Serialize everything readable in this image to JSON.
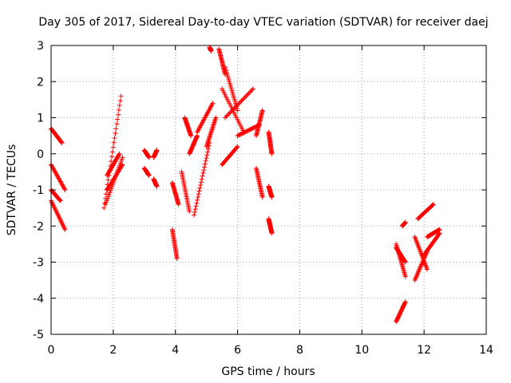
{
  "chart_data": {
    "type": "scatter",
    "title": "Day 305 of 2017, Sidereal Day-to-day VTEC variation (SDTVAR) for receiver daej",
    "xlabel": "GPS time / hours",
    "ylabel": "SDTVAR / TECUs",
    "xlim": [
      0,
      14
    ],
    "ylim": [
      -5,
      3
    ],
    "xticks": [
      0,
      2,
      4,
      6,
      8,
      10,
      12,
      14
    ],
    "yticks": [
      -5,
      -4,
      -3,
      -2,
      -1,
      0,
      1,
      2,
      3
    ],
    "grid": true,
    "marker": "plus",
    "color": "#ff0000",
    "series_segments": [
      {
        "x": [
          0.0,
          0.35
        ],
        "y": [
          0.7,
          0.3
        ]
      },
      {
        "x": [
          0.0,
          0.45
        ],
        "y": [
          -0.3,
          -1.0
        ]
      },
      {
        "x": [
          0.0,
          0.45
        ],
        "y": [
          -1.3,
          -2.1
        ]
      },
      {
        "x": [
          0.0,
          0.3
        ],
        "y": [
          -1.0,
          -1.3
        ]
      },
      {
        "x": [
          1.7,
          2.25
        ],
        "y": [
          -1.5,
          1.6
        ]
      },
      {
        "x": [
          1.75,
          2.3
        ],
        "y": [
          -1.4,
          -0.1
        ]
      },
      {
        "x": [
          1.8,
          2.2
        ],
        "y": [
          -0.6,
          0.0
        ]
      },
      {
        "x": [
          1.8,
          2.3
        ],
        "y": [
          -1.0,
          -0.3
        ]
      },
      {
        "x": [
          3.0,
          3.15
        ],
        "y": [
          0.1,
          -0.1
        ]
      },
      {
        "x": [
          3.0,
          3.15
        ],
        "y": [
          -0.4,
          -0.6
        ]
      },
      {
        "x": [
          3.3,
          3.4
        ],
        "y": [
          -0.1,
          0.1
        ]
      },
      {
        "x": [
          3.3,
          3.4
        ],
        "y": [
          -0.7,
          -0.9
        ]
      },
      {
        "x": [
          3.9,
          4.05
        ],
        "y": [
          -2.1,
          -2.9
        ]
      },
      {
        "x": [
          3.9,
          4.1
        ],
        "y": [
          -0.8,
          -1.4
        ]
      },
      {
        "x": [
          4.2,
          4.45
        ],
        "y": [
          -0.5,
          -1.6
        ]
      },
      {
        "x": [
          4.3,
          4.5
        ],
        "y": [
          1.0,
          0.5
        ]
      },
      {
        "x": [
          4.45,
          4.7
        ],
        "y": [
          0.0,
          0.5
        ]
      },
      {
        "x": [
          4.6,
          5.1
        ],
        "y": [
          -1.7,
          0.3
        ]
      },
      {
        "x": [
          4.7,
          5.2
        ],
        "y": [
          0.6,
          1.4
        ]
      },
      {
        "x": [
          5.0,
          5.3
        ],
        "y": [
          0.2,
          1.0
        ]
      },
      {
        "x": [
          5.1,
          5.15
        ],
        "y": [
          2.95,
          2.85
        ]
      },
      {
        "x": [
          5.4,
          5.6
        ],
        "y": [
          2.9,
          2.2
        ]
      },
      {
        "x": [
          5.5,
          6.2
        ],
        "y": [
          1.8,
          0.6
        ]
      },
      {
        "x": [
          5.6,
          6.0
        ],
        "y": [
          2.4,
          1.2
        ]
      },
      {
        "x": [
          5.6,
          6.5
        ],
        "y": [
          1.0,
          1.8
        ]
      },
      {
        "x": [
          5.5,
          6.0
        ],
        "y": [
          -0.3,
          0.2
        ]
      },
      {
        "x": [
          6.0,
          6.7
        ],
        "y": [
          0.5,
          0.8
        ]
      },
      {
        "x": [
          6.6,
          6.8
        ],
        "y": [
          0.5,
          1.2
        ]
      },
      {
        "x": [
          6.6,
          6.8
        ],
        "y": [
          -0.4,
          -1.2
        ]
      },
      {
        "x": [
          7.0,
          7.1
        ],
        "y": [
          0.6,
          0.0
        ]
      },
      {
        "x": [
          7.0,
          7.1
        ],
        "y": [
          -0.9,
          -1.2
        ]
      },
      {
        "x": [
          7.0,
          7.1
        ],
        "y": [
          -1.8,
          -2.2
        ]
      },
      {
        "x": [
          11.1,
          11.4
        ],
        "y": [
          -2.5,
          -3.4
        ]
      },
      {
        "x": [
          11.1,
          11.4
        ],
        "y": [
          -2.6,
          -3.0
        ]
      },
      {
        "x": [
          11.1,
          11.4
        ],
        "y": [
          -4.65,
          -4.1
        ]
      },
      {
        "x": [
          11.3,
          11.4
        ],
        "y": [
          -2.0,
          -1.9
        ]
      },
      {
        "x": [
          11.7,
          12.1
        ],
        "y": [
          -2.3,
          -3.2
        ]
      },
      {
        "x": [
          11.7,
          12.1
        ],
        "y": [
          -3.5,
          -2.7
        ]
      },
      {
        "x": [
          11.8,
          12.3
        ],
        "y": [
          -1.8,
          -1.4
        ]
      },
      {
        "x": [
          12.0,
          12.5
        ],
        "y": [
          -2.8,
          -2.2
        ]
      },
      {
        "x": [
          12.1,
          12.5
        ],
        "y": [
          -2.3,
          -2.1
        ]
      }
    ]
  }
}
